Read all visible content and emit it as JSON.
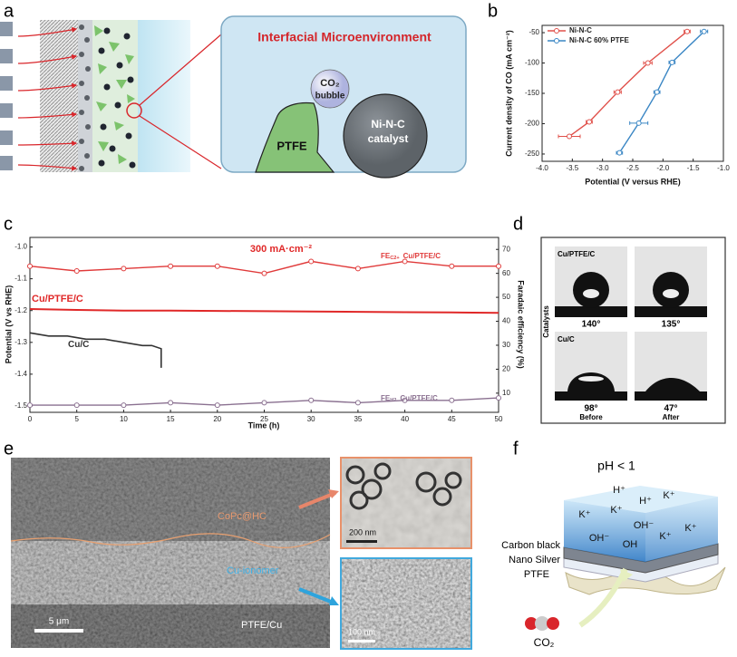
{
  "panel_labels": [
    "a",
    "b",
    "c",
    "d",
    "e",
    "f"
  ],
  "panel_a": {
    "title": "Interfacial Microenvironment",
    "bubble": [
      "CO₂",
      "bubble"
    ],
    "ptfe": "PTFE",
    "catalyst": [
      "Ni-N-C",
      "catalyst"
    ]
  },
  "chart_data": [
    {
      "type": "line",
      "x_label": "Potential (V versus RHE)",
      "y_label": "Current density of CO (mA cm⁻²)",
      "series": [
        {
          "name": "Ni-N-C",
          "color": "#e0504a",
          "x": [
            -3.55,
            -3.22,
            -2.75,
            -2.25,
            -1.6
          ],
          "xerr": [
            0.18,
            0.05,
            0.06,
            0.07,
            0.05
          ],
          "values": [
            -221,
            -197,
            -148,
            -100,
            -48
          ]
        },
        {
          "name": "Ni-N-C 60% PTFE",
          "color": "#3a86c4",
          "x": [
            -2.72,
            -2.4,
            -2.1,
            -1.85,
            -1.32
          ],
          "xerr": [
            0.05,
            0.15,
            0.05,
            0.05,
            0.06
          ],
          "values": [
            -248,
            -199,
            -148,
            -99,
            -48
          ]
        }
      ],
      "xlim": [
        -4,
        -1
      ],
      "xticks": [
        {
          "value": -4,
          "label": "-4.0"
        },
        {
          "value": -3.5,
          "label": "-3.5"
        },
        {
          "value": -3,
          "label": "-3.0"
        },
        {
          "value": -2.5,
          "label": "-2.5"
        },
        {
          "value": -2,
          "label": "-2.0"
        },
        {
          "value": -1.5,
          "label": "-1.5"
        },
        {
          "value": -1,
          "label": "-1.0"
        }
      ],
      "ylim": [
        -262,
        -38
      ],
      "yticks": [
        -250,
        -200,
        -150,
        -100,
        -50
      ],
      "legend": "upper left"
    },
    {
      "type": "line",
      "x_label": "Time (h)",
      "y_label": "Potential (V vs RHE)",
      "y2_label": "Faradaic efficiency (%)",
      "annotation": "300 mA·cm⁻²",
      "series": [
        {
          "name": "Cu/PTFE/C",
          "color": "#e02828",
          "x": [
            0,
            5,
            10,
            15,
            20,
            25,
            30,
            35,
            40,
            45,
            50
          ],
          "values": [
            -1.195,
            -1.198,
            -1.2,
            -1.2,
            -1.201,
            -1.202,
            -1.203,
            -1.204,
            -1.205,
            -1.206,
            -1.207
          ]
        },
        {
          "name": "Cu/C",
          "color": "#333333",
          "x": [
            0,
            2,
            4,
            6,
            8,
            10,
            12,
            13,
            14,
            14
          ],
          "values": [
            -1.27,
            -1.28,
            -1.28,
            -1.29,
            -1.29,
            -1.3,
            -1.31,
            -1.31,
            -1.32,
            -1.38
          ]
        },
        {
          "name": "Cu/PTFE/C",
          "name_prefix": "FE",
          "name_sub": "C2+",
          "color": "#e03a3a",
          "axis": "y2",
          "x": [
            0,
            5,
            10,
            15,
            20,
            25,
            30,
            35,
            40,
            45,
            50
          ],
          "values": [
            63,
            61,
            62,
            63,
            63,
            60,
            65,
            62,
            65,
            63,
            63
          ]
        },
        {
          "name": "Cu/PTFE/C",
          "name_prefix": "FE",
          "name_sub": "H2",
          "color": "#8a7090",
          "axis": "y2",
          "x": [
            0,
            5,
            10,
            15,
            20,
            25,
            30,
            35,
            40,
            45,
            50
          ],
          "values": [
            5,
            5,
            5,
            6,
            5,
            6,
            7,
            6,
            7,
            7,
            8
          ]
        }
      ],
      "xlim": [
        0,
        50
      ],
      "xticks": [
        0,
        5,
        10,
        15,
        20,
        25,
        30,
        35,
        40,
        45,
        50
      ],
      "ylim": [
        -1.52,
        -0.97
      ],
      "yticks": [
        -1.5,
        -1.4,
        -1.3,
        -1.2,
        -1.1,
        {
          "value": -1,
          "label": "-1.0"
        }
      ],
      "y2lim": [
        2,
        75
      ],
      "y2ticks": [
        10,
        20,
        30,
        40,
        50,
        60,
        70
      ]
    }
  ],
  "panel_d": {
    "axis_label": "Catalysts",
    "columns": [
      "Before",
      "After"
    ],
    "rows": [
      {
        "label": "Cu/PTFE/C",
        "before": "140°",
        "after": "135°"
      },
      {
        "label": "Cu/C",
        "before": "98°",
        "after": "47°"
      }
    ]
  },
  "panel_e": {
    "top": "CoPc@HC",
    "middle": "Cu-ionomer",
    "bottom": "PTFE/Cu",
    "scale_bars": [
      "5 μm",
      "200 nm",
      "100 nm"
    ]
  },
  "panel_f": {
    "title": "pH < 1",
    "ions": [
      "H⁺",
      "H⁺",
      "K⁺",
      "K⁺",
      "K⁺",
      "OH⁻",
      "K⁺",
      "OH⁻",
      "OH",
      "K⁺"
    ],
    "layers": [
      "Carbon black",
      "Nano Silver",
      "PTFE"
    ],
    "gas": "CO₂"
  }
}
